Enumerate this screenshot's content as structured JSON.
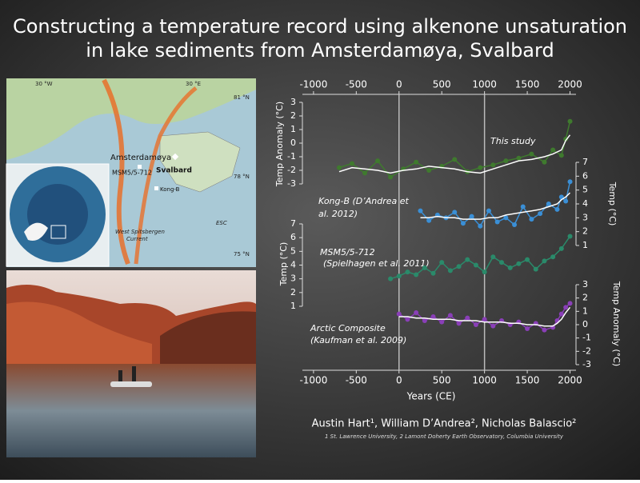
{
  "title": [
    "Constructing a temperature record using alkenone unsaturation",
    "in lake sediments from Amsterdamøya, Svalbard"
  ],
  "map": {
    "labels": [
      "30 °W",
      "30 °E",
      "81 °N",
      "78 °N",
      "75 °N",
      "Amsterdamøya",
      "Svalbard",
      "MSM5/5-712",
      "Kong-B",
      "West Spitsbergen",
      "Current",
      "ESC"
    ]
  },
  "authors": "Austin Hart¹, William D’Andrea², Nicholas Balascio²",
  "affiliations": "1 St. Lawrence University, 2 Lamont Doherty Earth Observatory, Columbia University",
  "chart_data": {
    "type": "line",
    "xlabel": "Years (CE)",
    "xlim": [
      -1130,
      2070
    ],
    "xticks": [
      -1000,
      -500,
      0,
      500,
      1000,
      1500,
      2000
    ],
    "vlines": [
      0,
      1000
    ],
    "panels": [
      {
        "label": [
          "This study"
        ],
        "ylabel": "Temp Anomaly (°C)",
        "axis": "left",
        "color": "#3f7a2e",
        "ylim": [
          -3,
          3
        ],
        "yticks": [
          -3,
          -2,
          -1,
          0,
          1,
          2,
          3
        ],
        "x": [
          -700,
          -550,
          -400,
          -250,
          -100,
          50,
          200,
          350,
          500,
          650,
          800,
          950,
          1100,
          1250,
          1400,
          1550,
          1700,
          1800,
          1900,
          1950,
          2000
        ],
        "values": [
          -1.8,
          -1.5,
          -2.2,
          -1.3,
          -2.5,
          -1.9,
          -1.4,
          -2.0,
          -1.7,
          -1.2,
          -2.1,
          -1.8,
          -1.6,
          -1.3,
          -1.1,
          -0.8,
          -1.4,
          -0.5,
          -0.9,
          0.3,
          1.6
        ],
        "smooth": [
          -2.1,
          -1.8,
          -1.9,
          -2.0,
          -2.2,
          -2.0,
          -1.9,
          -1.7,
          -1.8,
          -1.9,
          -2.1,
          -2.2,
          -1.9,
          -1.6,
          -1.3,
          -1.2,
          -1.0,
          -0.8,
          -0.5,
          0.2,
          0.6
        ]
      },
      {
        "label": [
          "Kong-B (D’Andrea et",
          "al. 2012)"
        ],
        "ylabel": "Temp (°C)",
        "axis": "right",
        "color": "#3a8fd6",
        "ylim": [
          1,
          7
        ],
        "yticks": [
          1,
          2,
          3,
          4,
          5,
          6,
          7
        ],
        "x": [
          250,
          350,
          450,
          550,
          650,
          750,
          850,
          950,
          1050,
          1150,
          1250,
          1350,
          1450,
          1550,
          1650,
          1750,
          1850,
          1900,
          1950,
          2000
        ],
        "values": [
          3.5,
          2.8,
          3.2,
          3.0,
          3.4,
          2.6,
          3.1,
          2.4,
          3.5,
          2.7,
          3.0,
          2.5,
          3.8,
          2.9,
          3.3,
          4.0,
          3.6,
          4.5,
          4.2,
          5.6
        ],
        "smooth": [
          3.0,
          3.0,
          3.1,
          3.0,
          3.0,
          2.9,
          2.9,
          2.9,
          3.0,
          3.0,
          3.2,
          3.3,
          3.4,
          3.5,
          3.6,
          3.8,
          4.0,
          4.3,
          4.5,
          4.8
        ]
      },
      {
        "label": [
          "MSM5/5-712",
          "(Spielhagen et al. 2011)"
        ],
        "ylabel": "Temp (°C)",
        "axis": "left",
        "color": "#2a8a6a",
        "ylim": [
          1,
          7
        ],
        "yticks": [
          1,
          2,
          3,
          4,
          5,
          6,
          7
        ],
        "x": [
          -100,
          0,
          100,
          200,
          300,
          400,
          500,
          600,
          700,
          800,
          900,
          1000,
          1100,
          1200,
          1300,
          1400,
          1500,
          1600,
          1700,
          1800,
          1900,
          2000
        ],
        "values": [
          3.0,
          3.2,
          3.5,
          3.3,
          3.8,
          3.4,
          4.2,
          3.6,
          3.9,
          4.4,
          4.0,
          3.5,
          4.6,
          4.2,
          3.8,
          4.1,
          4.4,
          3.7,
          4.3,
          4.6,
          5.2,
          6.1
        ]
      },
      {
        "label": [
          "Arctic Composite",
          "(Kaufman et al. 2009)"
        ],
        "ylabel": "Temp Anomaly (°C)",
        "axis": "right",
        "color": "#8a3fb8",
        "ylim": [
          -3,
          3
        ],
        "yticks": [
          -3,
          -2,
          -1,
          0,
          1,
          2,
          3
        ],
        "x": [
          0,
          100,
          200,
          300,
          400,
          500,
          600,
          700,
          800,
          900,
          1000,
          1100,
          1200,
          1300,
          1400,
          1500,
          1600,
          1700,
          1800,
          1850,
          1900,
          1950,
          2000
        ],
        "values": [
          0.8,
          0.4,
          0.9,
          0.3,
          0.6,
          0.2,
          0.7,
          0.1,
          0.5,
          0.0,
          0.4,
          -0.1,
          0.3,
          0.0,
          0.2,
          -0.3,
          0.1,
          -0.4,
          -0.2,
          0.3,
          0.8,
          1.3,
          1.6
        ],
        "smooth": [
          0.6,
          0.6,
          0.5,
          0.5,
          0.4,
          0.4,
          0.4,
          0.3,
          0.3,
          0.3,
          0.2,
          0.2,
          0.2,
          0.1,
          0.1,
          0.0,
          0.0,
          -0.1,
          -0.1,
          0.1,
          0.4,
          0.9,
          1.3
        ]
      }
    ]
  }
}
